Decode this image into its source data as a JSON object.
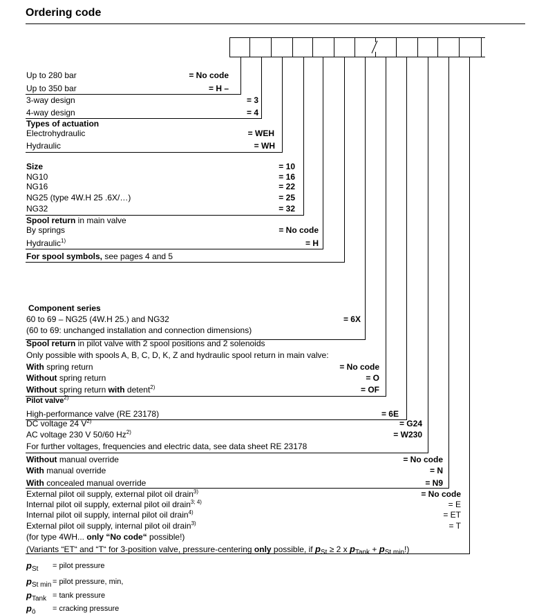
{
  "title": "Ordering code",
  "rows": [
    {
      "label": "Up to 280 bar",
      "code": "= No code"
    },
    {
      "label": "Up to 350 bar",
      "code": "= H –"
    },
    {
      "label": "3-way design",
      "code": "= 3"
    },
    {
      "label": "4-way design",
      "code": "= 4"
    },
    {
      "bold": "Types of actuation"
    },
    {
      "label": "Electrohydraulic",
      "code": "= WEH"
    },
    {
      "label": "Hydraulic",
      "code": "= WH"
    },
    {
      "bold": "Size",
      "code": "= 10"
    },
    {
      "label": "NG10",
      "code": "= 16"
    },
    {
      "label": "NG16",
      "code": "= 22"
    },
    {
      "label": "NG25 (type 4W.H 25 .6X/…)",
      "code": "= 25"
    },
    {
      "label": "NG32",
      "code": "= 32"
    },
    {
      "bold": "Spool return",
      "label": " in main valve"
    },
    {
      "label": "By springs",
      "code": "= No code"
    },
    {
      "label": "Hydraulic",
      "sup": "1)",
      "code": "= H"
    },
    {
      "bold": "For spool symbols,",
      "label": " see pages 4 and 5"
    },
    {
      "bold": "Component series"
    },
    {
      "label": "60 to 69 – NG25 (4W.H 25.) and NG32",
      "code": "= 6X"
    },
    {
      "label": "(60 to 69: unchanged installation and connection dimensions)"
    },
    {
      "bold": "Spool return",
      "label": " in pilot valve with 2 spool positions and 2 solenoids"
    },
    {
      "label": "Only possible with spools A, B, C, D, K, Z and hydraulic spool return in main valve:"
    },
    {
      "bold": "With",
      "label": " spring return",
      "code": "= No code"
    },
    {
      "bold": "Without",
      "label": " spring return",
      "code": "= O"
    },
    {
      "bold": "Without",
      "label": " spring return ",
      "bold2": "with",
      "label2": " detent",
      "sup": "2)",
      "code": "= OF"
    },
    {
      "bold": "Pilot valve",
      "sup": "2)"
    },
    {
      "label": "High-performance valve (RE 23178)",
      "code": "= 6E"
    },
    {
      "label": "DC voltage 24 V",
      "sup": "2)",
      "code": "= G24"
    },
    {
      "label": "AC voltage 230 V 50/60 Hz",
      "sup": "2)",
      "code": "= W230"
    },
    {
      "label": "For further voltages, frequencies and electric data, see data sheet RE 23178"
    },
    {
      "bold": "Without",
      "label": " manual override",
      "code": "= No code"
    },
    {
      "bold": "With",
      "label": " manual override",
      "code": "= N"
    },
    {
      "bold": "With",
      "label": " concealed manual override",
      "code": "= N9"
    },
    {
      "label": "External pilot oil supply, external pilot oil drain",
      "sup": "3)",
      "code": "= No code"
    },
    {
      "label": "Internal pilot oil supply, external pilot oil drain",
      "sup": "3; 4)",
      "code": "= E"
    },
    {
      "label": "Internal pilot oil supply, internal pilot oil drain",
      "sup": "4)",
      "code": "= ET"
    },
    {
      "label": "External pilot oil supply, internal pilot oil drain",
      "sup": "3)",
      "code": "= T"
    },
    {
      "label": "(for type 4WH... ",
      "bold": "only “No code“",
      "label2": " possible!)"
    }
  ],
  "variants": {
    "a": "(Variants “ET“ and “T“ for 3-position valve, pressure-centering ",
    "b": "only",
    "c": " possible, if ",
    "p1": "p",
    "s1": "St",
    "d": " ≥ 2 x ",
    "p2": "p",
    "s2": "Tank",
    "e": " + ",
    "p3": "p",
    "s3": "St min",
    "f": "!)"
  },
  "legend": [
    {
      "p": "p",
      "sub": "St",
      "text": "= pilot pressure"
    },
    {
      "p": "p",
      "sub": "St min",
      "text": "= pilot pressure, min,"
    },
    {
      "p": "p",
      "sub": "Tank",
      "text": "= tank pressure"
    },
    {
      "p": "p",
      "sub": "ö",
      "text": "= cracking pressure"
    }
  ]
}
